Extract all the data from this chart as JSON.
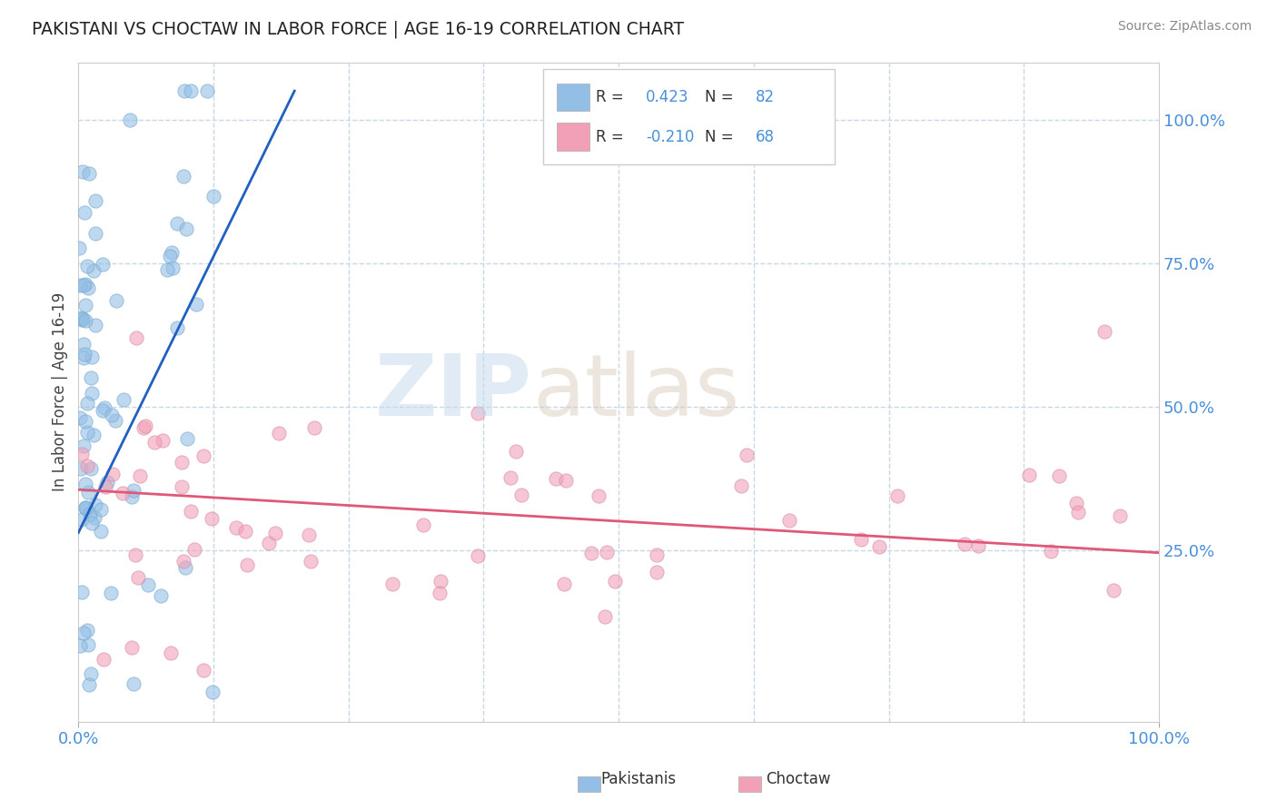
{
  "title": "PAKISTANI VS CHOCTAW IN LABOR FORCE | AGE 16-19 CORRELATION CHART",
  "source": "Source: ZipAtlas.com",
  "ylabel": "In Labor Force | Age 16-19",
  "pakistani_R": 0.423,
  "pakistani_N": 82,
  "choctaw_R": -0.21,
  "choctaw_N": 68,
  "blue_color": "#93bfe6",
  "pink_color": "#f2a0b8",
  "blue_line_color": "#2060c0",
  "pink_line_color": "#e05878",
  "tick_color": "#4a90d9",
  "grid_color": "#c8d8e8",
  "figsize": [
    14.06,
    8.92
  ],
  "dpi": 100,
  "xlim": [
    0.0,
    1.0
  ],
  "ylim": [
    -0.05,
    1.1
  ],
  "pak_trend_x0": 0.0,
  "pak_trend_x1": 0.2,
  "pak_trend_y0": 0.28,
  "pak_trend_y1": 1.05,
  "cho_trend_x0": 0.0,
  "cho_trend_x1": 1.0,
  "cho_trend_y0": 0.355,
  "cho_trend_y1": 0.245,
  "legend_R1": "0.423",
  "legend_N1": "82",
  "legend_R2": "-0.210",
  "legend_N2": "68"
}
